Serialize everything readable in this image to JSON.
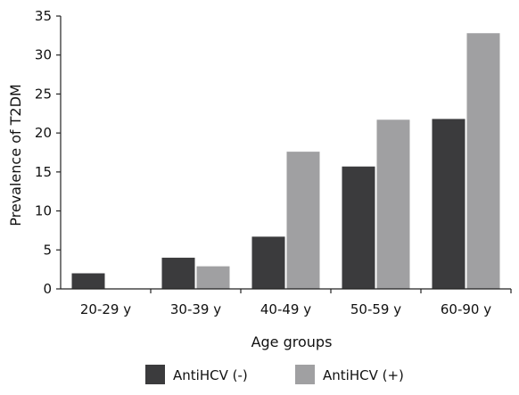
{
  "chart_data": {
    "type": "bar",
    "title": "",
    "xlabel": "Age groups",
    "ylabel": "Prevalence of T2DM",
    "ylim": [
      0,
      35
    ],
    "yticks": [
      0,
      5,
      10,
      15,
      20,
      25,
      30,
      35
    ],
    "categories": [
      "20-29 y",
      "30-39 y",
      "40-49 y",
      "50-59 y",
      "60-90 y"
    ],
    "series": [
      {
        "name": "AntiHCV (-)",
        "color": "#3b3b3d",
        "values": [
          2,
          4,
          6.7,
          15.7,
          21.8
        ]
      },
      {
        "name": "AntiHCV (+)",
        "color": "#a0a0a2",
        "values": [
          0,
          2.9,
          17.6,
          21.7,
          32.8
        ]
      }
    ],
    "grid": false,
    "legend_position": "bottom-center"
  }
}
